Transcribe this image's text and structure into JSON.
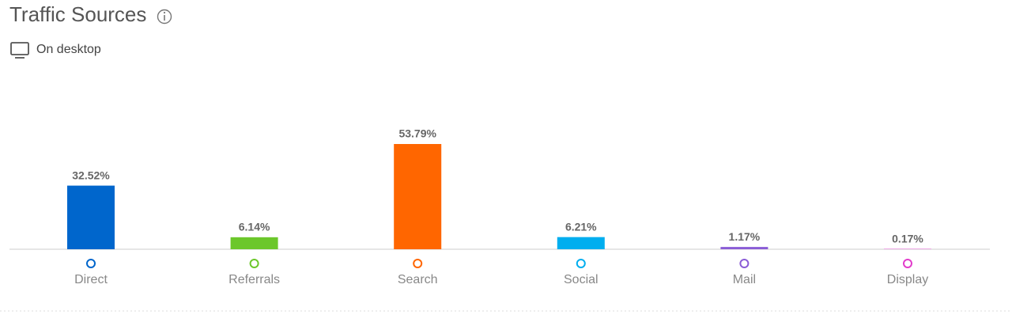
{
  "header": {
    "title": "Traffic Sources",
    "subtitle": "On desktop"
  },
  "chart_data": {
    "type": "bar",
    "categories": [
      "Direct",
      "Referrals",
      "Search",
      "Social",
      "Mail",
      "Display"
    ],
    "values": [
      32.52,
      6.14,
      53.79,
      6.21,
      1.17,
      0.17
    ],
    "value_labels": [
      "32.52%",
      "6.14%",
      "53.79%",
      "6.21%",
      "1.17%",
      "0.17%"
    ],
    "colors": [
      "#0066cc",
      "#6cc72b",
      "#ff6600",
      "#00aeef",
      "#8a5cd6",
      "#e23ccb"
    ]
  }
}
